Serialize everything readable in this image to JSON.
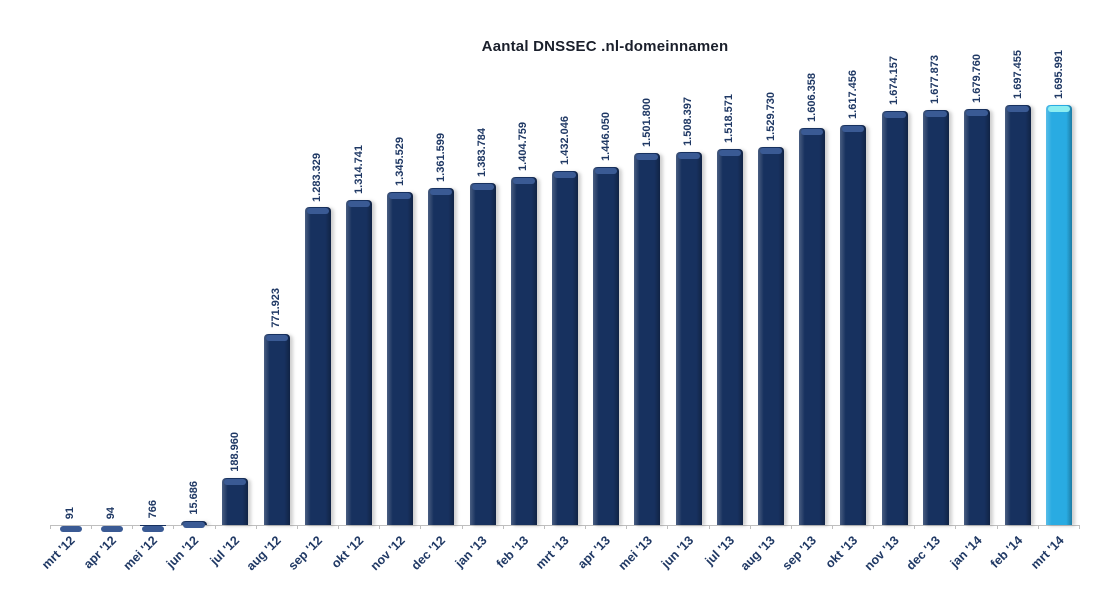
{
  "title": "Aantal DNSSEC .nl-domeinnamen",
  "chart_data": {
    "type": "bar",
    "title": "Aantal DNSSEC .nl-domeinnamen",
    "xlabel": "",
    "ylabel": "",
    "grid": false,
    "legend": false,
    "y_axis_visible": false,
    "ylim": [
      0,
      1750000
    ],
    "categories": [
      "mrt '12",
      "apr '12",
      "mei '12",
      "jun '12",
      "jul '12",
      "aug '12",
      "sep '12",
      "okt '12",
      "nov '12",
      "dec '12",
      "jan '13",
      "feb '13",
      "mrt '13",
      "apr '13",
      "mei '13",
      "jun '13",
      "jul '13",
      "aug '13",
      "sep '13",
      "okt '13",
      "nov '13",
      "dec '13",
      "jan '14",
      "feb '14",
      "mrt '14"
    ],
    "values": [
      91,
      94,
      766,
      15686,
      188960,
      771923,
      1283329,
      1314741,
      1345529,
      1361599,
      1383784,
      1404759,
      1432046,
      1446050,
      1501800,
      1508397,
      1518571,
      1529730,
      1606358,
      1617456,
      1674157,
      1677873,
      1679760,
      1697455,
      1695991
    ],
    "value_labels": [
      "91",
      "94",
      "766",
      "15.686",
      "188.960",
      "771.923",
      "1.283.329",
      "1.314.741",
      "1.345.529",
      "1.361.599",
      "1.383.784",
      "1.404.759",
      "1.432.046",
      "1.446.050",
      "1.501.800",
      "1.508.397",
      "1.518.571",
      "1.529.730",
      "1.606.358",
      "1.617.456",
      "1.674.157",
      "1.677.873",
      "1.679.760",
      "1.697.455",
      "1.695.991"
    ],
    "highlight_index": 24
  },
  "colors": {
    "bar": "#17315f",
    "bar_cap": "#3a5a94",
    "highlight_bar": "#29abe2",
    "highlight_cap": "#8bedf1",
    "axis_line": "#bfbfbf",
    "label_text": "#1f3864",
    "title_text": "#1a1f2b"
  }
}
